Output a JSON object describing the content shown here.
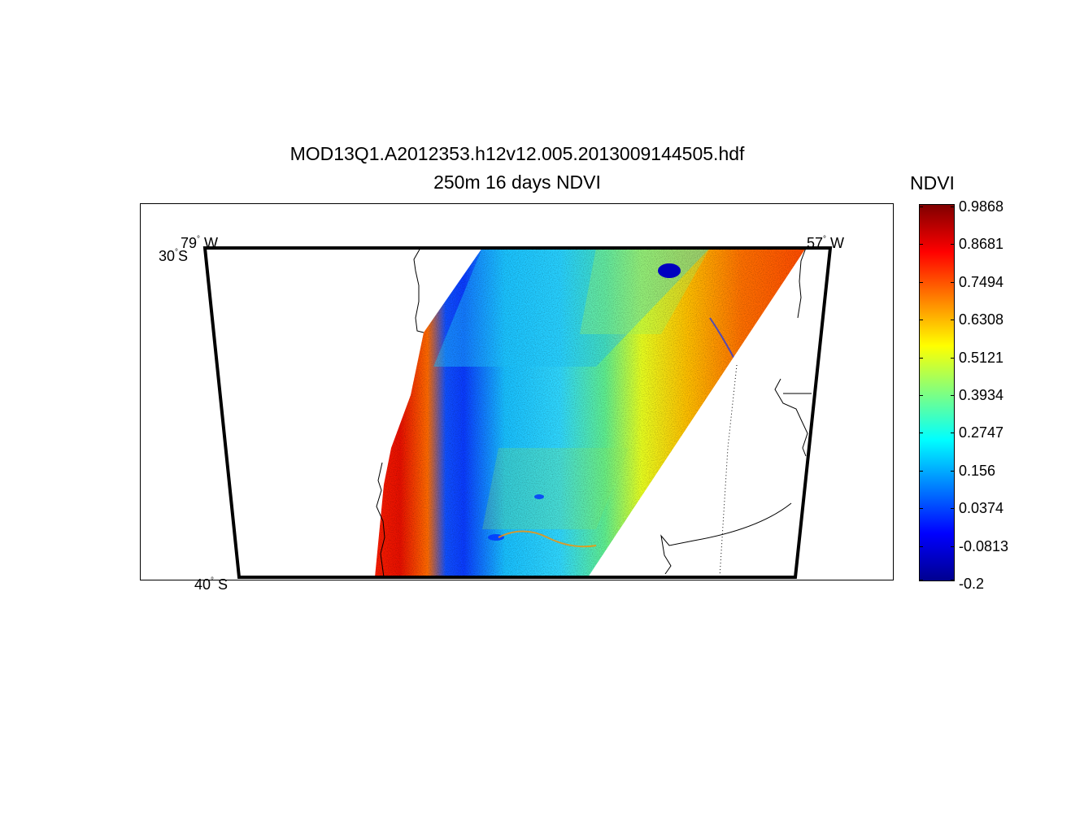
{
  "title": "MOD13Q1.A2012353.h12v12.005.2013009144505.hdf",
  "subtitle": "250m 16 days NDVI",
  "map": {
    "lon_west": "79",
    "lon_east": "57",
    "lon_west_suffix": "W",
    "lon_east_suffix": "W",
    "lat_north": "30",
    "lat_south": "40",
    "lat_suffix": "S",
    "degree_symbol": "°"
  },
  "colorbar": {
    "title": "NDVI",
    "min": -0.2,
    "max": 0.9868,
    "colormap": "jet",
    "ticks": [
      "0.9868",
      "0.8681",
      "0.7494",
      "0.6308",
      "0.5121",
      "0.3934",
      "0.2747",
      "0.156",
      "0.0374",
      "-0.0813",
      "-0.2"
    ]
  },
  "colors": {
    "water": "#0000ff",
    "low": "#00008f",
    "high": "#800000",
    "frame": "#000000"
  }
}
